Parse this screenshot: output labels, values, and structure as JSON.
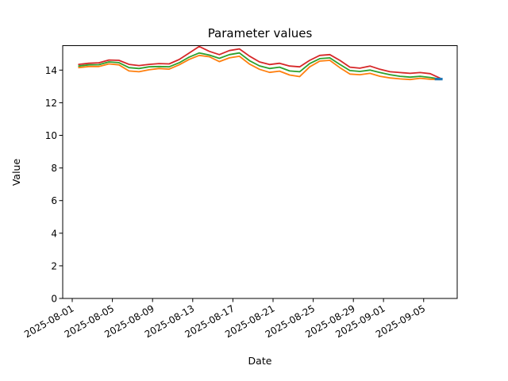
{
  "chart_data": {
    "type": "line",
    "title": "Parameter values",
    "xlabel": "Date",
    "ylabel": "Value",
    "grid": false,
    "legend": "none",
    "ylim": [
      0,
      15.5
    ],
    "yticks": [
      0,
      2,
      4,
      6,
      8,
      10,
      12,
      14
    ],
    "xtick_labels": [
      "2025-08-01",
      "2025-08-05",
      "2025-08-09",
      "2025-08-13",
      "2025-08-17",
      "2025-08-21",
      "2025-08-25",
      "2025-08-29",
      "2025-09-01",
      "2025-09-05"
    ],
    "x": [
      "2025-08-01",
      "2025-08-02",
      "2025-08-03",
      "2025-08-04",
      "2025-08-05",
      "2025-08-06",
      "2025-08-07",
      "2025-08-08",
      "2025-08-09",
      "2025-08-10",
      "2025-08-11",
      "2025-08-12",
      "2025-08-13",
      "2025-08-14",
      "2025-08-15",
      "2025-08-16",
      "2025-08-17",
      "2025-08-18",
      "2025-08-19",
      "2025-08-20",
      "2025-08-21",
      "2025-08-22",
      "2025-08-23",
      "2025-08-24",
      "2025-08-25",
      "2025-08-26",
      "2025-08-27",
      "2025-08-28",
      "2025-08-29",
      "2025-08-30",
      "2025-08-31",
      "2025-09-01",
      "2025-09-02",
      "2025-09-03",
      "2025-09-04",
      "2025-09-05",
      "2025-09-06"
    ],
    "series": [
      {
        "color": "#d62728",
        "values": [
          14.35,
          14.42,
          14.45,
          14.62,
          14.6,
          14.35,
          14.28,
          14.35,
          14.4,
          14.38,
          14.65,
          15.05,
          15.45,
          15.15,
          14.95,
          15.2,
          15.3,
          14.86,
          14.5,
          14.34,
          14.42,
          14.25,
          14.2,
          14.6,
          14.9,
          14.95,
          14.6,
          14.18,
          14.12,
          14.25,
          14.05,
          13.9,
          13.85,
          13.8,
          13.85,
          13.78,
          13.5
        ]
      },
      {
        "color": "#2ca02c",
        "values": [
          14.25,
          14.32,
          14.33,
          14.5,
          14.46,
          14.15,
          14.1,
          14.2,
          14.22,
          14.2,
          14.45,
          14.8,
          15.05,
          14.92,
          14.72,
          14.95,
          15.05,
          14.58,
          14.26,
          14.1,
          14.18,
          13.95,
          13.9,
          14.4,
          14.7,
          14.75,
          14.35,
          13.97,
          13.92,
          14.0,
          13.85,
          13.72,
          13.62,
          13.57,
          13.62,
          13.55,
          13.45
        ]
      },
      {
        "color": "#ff7f0e",
        "values": [
          14.15,
          14.22,
          14.22,
          14.38,
          14.32,
          13.95,
          13.9,
          14.02,
          14.1,
          14.06,
          14.32,
          14.66,
          14.9,
          14.82,
          14.52,
          14.75,
          14.85,
          14.37,
          14.05,
          13.86,
          13.94,
          13.7,
          13.6,
          14.2,
          14.55,
          14.6,
          14.15,
          13.76,
          13.72,
          13.8,
          13.62,
          13.52,
          13.46,
          13.42,
          13.5,
          13.44,
          13.42
        ]
      }
    ],
    "end_marker": {
      "color": "#1f77b4",
      "x": "2025-09-06",
      "value": 13.45
    }
  }
}
